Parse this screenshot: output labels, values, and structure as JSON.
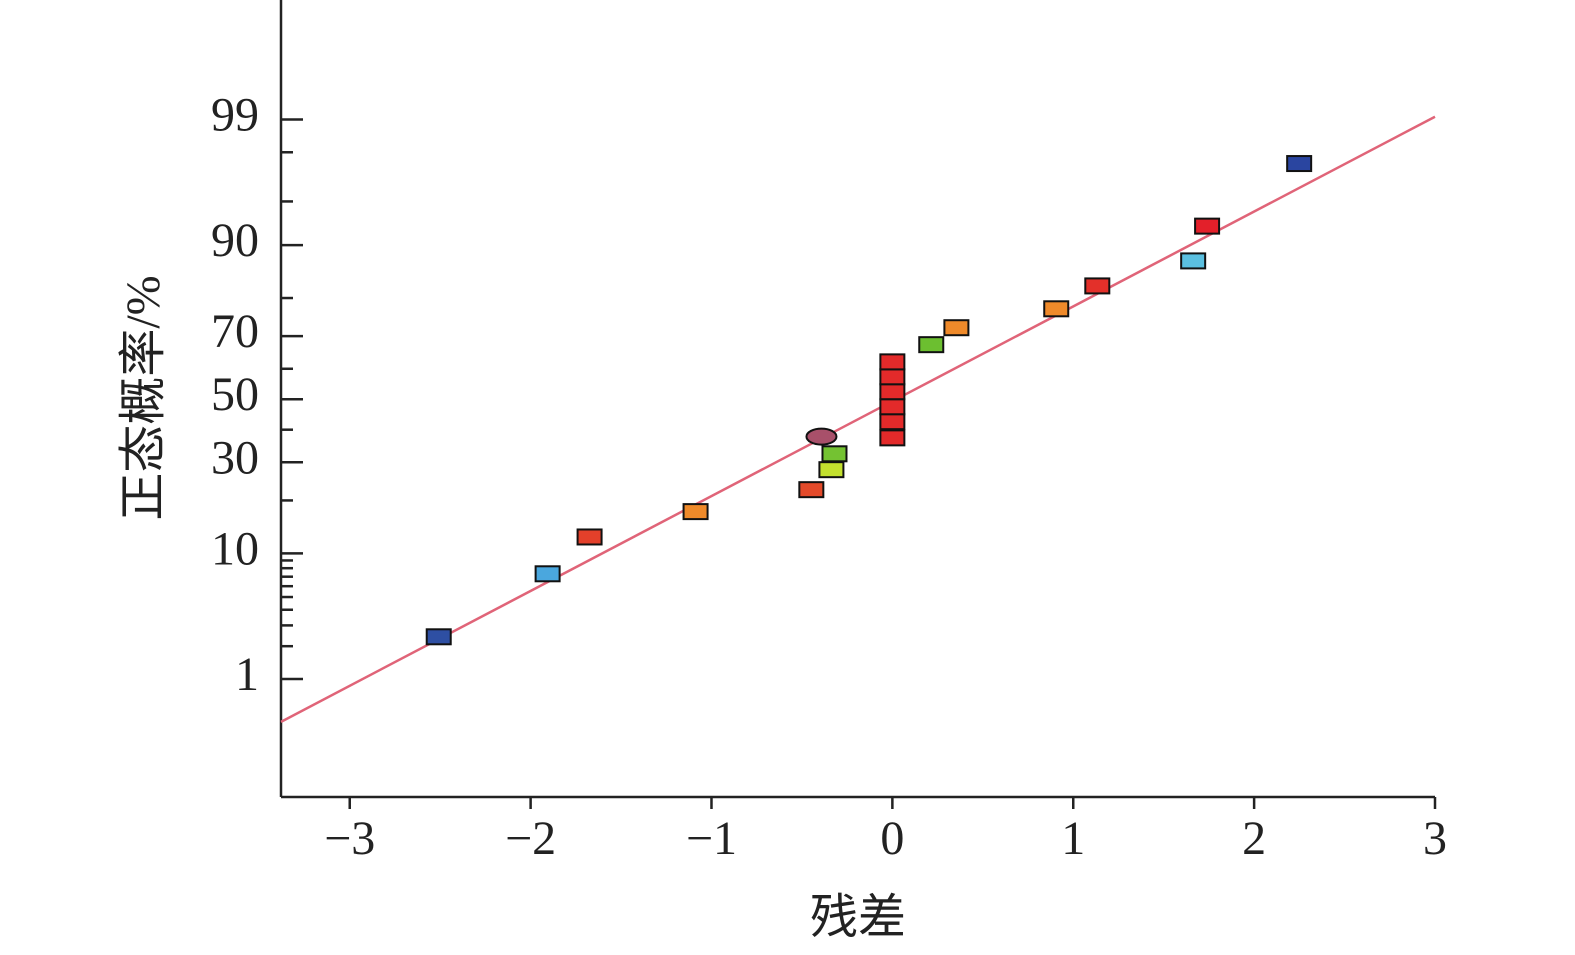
{
  "chart_data": {
    "type": "normal-probability",
    "x_label": "残差",
    "y_label": "正态概率/%",
    "xlim": [
      -3.38,
      3
    ],
    "ylim": [
      0.047,
      99.955
    ],
    "xticks": [
      {
        "value": -3,
        "label": "−3"
      },
      {
        "value": -2,
        "label": "−2"
      },
      {
        "value": -1,
        "label": "−1"
      },
      0,
      1,
      2,
      3
    ],
    "yticks": [
      1,
      10,
      30,
      50,
      70,
      90,
      99
    ],
    "yminorticks": [
      2,
      3,
      4,
      5,
      6,
      7,
      8,
      9,
      20,
      40,
      60,
      80,
      95,
      98
    ],
    "fit_line": {
      "color": "#e06478",
      "x": [
        -3.38,
        3
      ],
      "y": [
        0.365,
        99.06
      ]
    },
    "points": {
      "x": [
        -2.508,
        -1.906,
        -1.674,
        -1.088,
        -0.448,
        -0.337,
        -0.32,
        -0.392,
        0,
        0,
        0,
        0,
        0,
        0,
        0.215,
        0.354,
        0.906,
        1.133,
        1.663,
        1.74,
        2.249
      ],
      "y": [
        2.41,
        7.33,
        12.6,
        17.5,
        22.6,
        27.9,
        32.5,
        37.8,
        37.4,
        42.6,
        47.5,
        52.5,
        57.4,
        62.2,
        67.5,
        72.4,
        77.4,
        82.7,
        87.5,
        92.5,
        97.5
      ],
      "colors": [
        "#2e4fa3",
        "#4aa7de",
        "#e3402a",
        "#ef8a2a",
        "#e34a2a",
        "#c3e02e",
        "#74c232",
        "#a8506a",
        "#e32a2a",
        "#e32a2a",
        "#e32a2a",
        "#e32a2a",
        "#e32a2a",
        "#e32a2a",
        "#6cbf30",
        "#ef8a2a",
        "#ef8a2a",
        "#e3302a",
        "#5bc0e0",
        "#e3202a",
        "#2a45a0"
      ],
      "shapes": [
        "rect",
        "rect",
        "rect",
        "rect",
        "rect",
        "rect",
        "rect",
        "ellipse",
        "rect",
        "rect",
        "rect",
        "rect",
        "rect",
        "rect",
        "rect",
        "rect",
        "rect",
        "rect",
        "rect",
        "rect",
        "rect"
      ]
    }
  }
}
